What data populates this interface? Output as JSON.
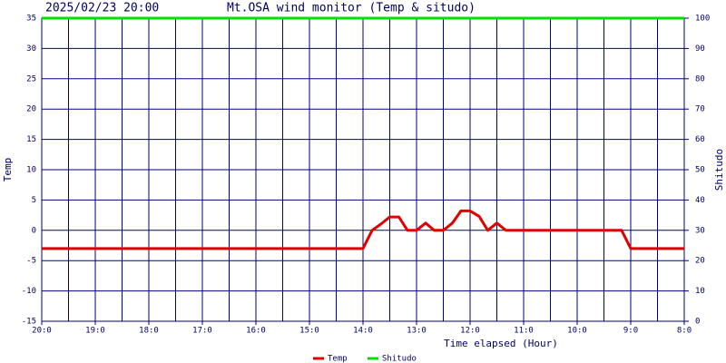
{
  "chart_data": {
    "type": "line",
    "timestamp": "2025/02/23 20:00",
    "title": "Mt.OSA wind monitor (Temp & situdo)",
    "xlabel": "Time elapsed (Hour)",
    "ylabel": "Temp",
    "y2label": "Shitudo",
    "xlim": [
      20,
      8
    ],
    "xticks": [
      {
        "value": 20,
        "label": "20:0"
      },
      {
        "value": 19,
        "label": "19:0"
      },
      {
        "value": 18,
        "label": "18:0"
      },
      {
        "value": 17,
        "label": "17:0"
      },
      {
        "value": 16,
        "label": "16:0"
      },
      {
        "value": 15,
        "label": "15:0"
      },
      {
        "value": 14,
        "label": "14:0"
      },
      {
        "value": 13,
        "label": "13:0"
      },
      {
        "value": 12,
        "label": "12:0"
      },
      {
        "value": 11,
        "label": "11:0"
      },
      {
        "value": 10,
        "label": "10:0"
      },
      {
        "value": 9,
        "label": "9:0"
      },
      {
        "value": 8,
        "label": "8:0"
      }
    ],
    "ylim": [
      -15,
      35
    ],
    "yticks": [
      -15,
      -10,
      -5,
      0,
      5,
      10,
      15,
      20,
      25,
      30,
      35
    ],
    "y2lim": [
      0,
      100
    ],
    "y2ticks": [
      0,
      10,
      20,
      30,
      40,
      50,
      60,
      70,
      80,
      90,
      100
    ],
    "grid": true,
    "series": [
      {
        "name": "Temp",
        "color": "#e00000",
        "x": [
          20,
          14,
          13.83,
          13.67,
          13.5,
          13.33,
          13.17,
          13.0,
          12.83,
          12.67,
          12.5,
          12.33,
          12.17,
          12.0,
          11.83,
          11.67,
          11.5,
          11.33,
          9.17,
          9.0,
          8
        ],
        "values": [
          -3,
          -3,
          0,
          1,
          2.2,
          2.2,
          0,
          0,
          1.2,
          0,
          0,
          1.2,
          3.2,
          3.2,
          2.3,
          0,
          1.2,
          0,
          0,
          -3,
          -3
        ]
      },
      {
        "name": "Shitudo",
        "color": "#00e000",
        "axis": "y2",
        "x": [
          20,
          8
        ],
        "values": [
          100,
          100
        ]
      }
    ]
  }
}
